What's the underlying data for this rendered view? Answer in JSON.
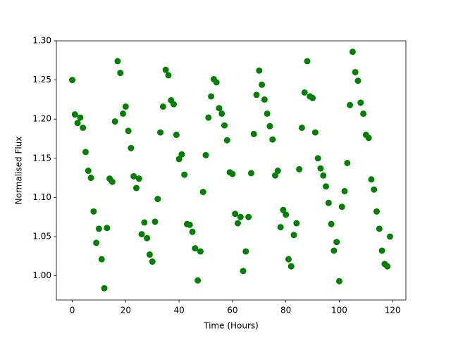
{
  "chart_data": {
    "type": "scatter",
    "x_label": "Time (Hours)",
    "y_label": "Normalised Flux",
    "series": [
      {
        "color": "#008000",
        "x": [
          0,
          1,
          2,
          3,
          4,
          5,
          6,
          7,
          8,
          9,
          10,
          11,
          12,
          13,
          14,
          15,
          16,
          17,
          18,
          19,
          20,
          21,
          22,
          23,
          24,
          25,
          26,
          27,
          28,
          29,
          30,
          31,
          32,
          33,
          34,
          35,
          36,
          37,
          38,
          39,
          40,
          41,
          42,
          43,
          44,
          45,
          46,
          47,
          48,
          49,
          50,
          51,
          52,
          53,
          54,
          55,
          56,
          57,
          58,
          59,
          60,
          61,
          62,
          63,
          64,
          65,
          66,
          67,
          68,
          69,
          70,
          71,
          72,
          73,
          74,
          75,
          76,
          77,
          78,
          79,
          80,
          81,
          82,
          83,
          84,
          85,
          86,
          87,
          88,
          89,
          90,
          91,
          92,
          93,
          94,
          95,
          96,
          97,
          98,
          99,
          100,
          101,
          102,
          103,
          104,
          105,
          106,
          107,
          108,
          109,
          110,
          111,
          112,
          113,
          114,
          115,
          116,
          117,
          118,
          119
        ],
        "values": [
          1.25,
          1.206,
          1.195,
          1.202,
          1.189,
          1.158,
          1.134,
          1.125,
          1.082,
          1.042,
          1.06,
          1.021,
          0.984,
          1.061,
          1.124,
          1.12,
          1.197,
          1.274,
          1.259,
          1.207,
          1.216,
          1.185,
          1.163,
          1.127,
          1.112,
          1.124,
          1.053,
          1.068,
          1.048,
          1.027,
          1.018,
          1.069,
          1.098,
          1.183,
          1.216,
          1.263,
          1.256,
          1.224,
          1.219,
          1.18,
          1.149,
          1.155,
          1.129,
          1.066,
          1.065,
          1.056,
          1.035,
          0.994,
          1.031,
          1.107,
          1.154,
          1.202,
          1.229,
          1.251,
          1.247,
          1.214,
          1.207,
          1.192,
          1.173,
          1.132,
          1.13,
          1.079,
          1.067,
          1.075,
          1.006,
          1.031,
          1.075,
          1.131,
          1.181,
          1.231,
          1.262,
          1.244,
          1.225,
          1.207,
          1.191,
          1.174,
          1.128,
          1.134,
          1.062,
          1.084,
          1.078,
          1.021,
          1.012,
          1.052,
          1.067,
          1.136,
          1.189,
          1.234,
          1.274,
          1.229,
          1.227,
          1.183,
          1.15,
          1.137,
          1.128,
          1.114,
          1.093,
          1.066,
          1.032,
          1.043,
          0.993,
          1.088,
          1.108,
          1.144,
          1.218,
          1.286,
          1.26,
          1.249,
          1.221,
          1.207,
          1.18,
          1.176,
          1.123,
          1.11,
          1.082,
          1.06,
          1.032,
          1.015,
          1.012,
          1.05
        ]
      }
    ],
    "xlim": [
      -5.95,
      124.95
    ],
    "xticks": [
      0,
      20,
      40,
      60,
      80,
      100,
      120
    ],
    "ylim": [
      0.969,
      1.3
    ],
    "yticks": [
      {
        "value": 1.0,
        "label": "1.00"
      },
      {
        "value": 1.05,
        "label": "1.05"
      },
      {
        "value": 1.1,
        "label": "1.10"
      },
      {
        "value": 1.15,
        "label": "1.15"
      },
      {
        "value": 1.2,
        "label": "1.20"
      },
      {
        "value": 1.25,
        "label": "1.25"
      },
      {
        "value": 1.3,
        "label": "1.30"
      }
    ],
    "grid": false
  }
}
